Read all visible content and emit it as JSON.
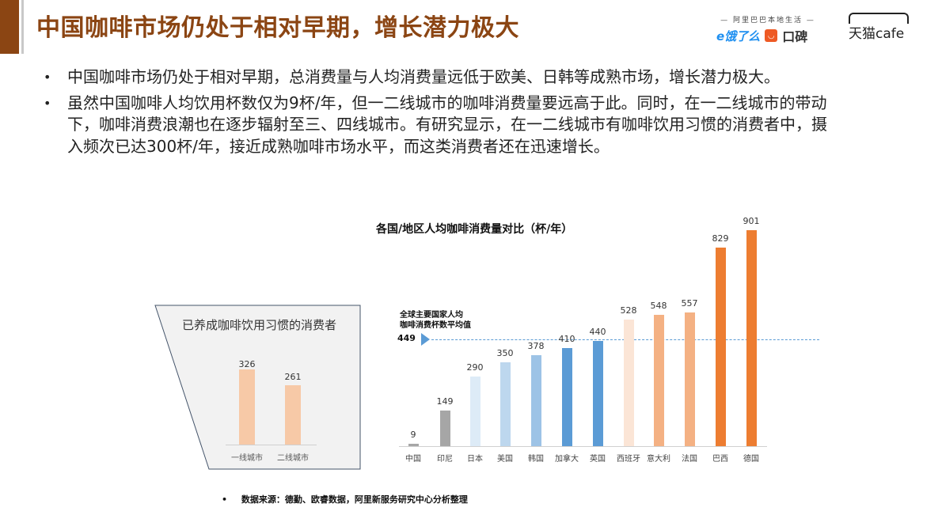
{
  "header": {
    "title": "中国咖啡市场仍处于相对早期，增长潜力极大",
    "logos": {
      "alibaba_sub": "— 阿里巴巴本地生活 —",
      "eleme": "e饿了么",
      "koubei": "口碑",
      "tmall_cafe": "天猫cafe"
    }
  },
  "bullets": [
    "中国咖啡市场仍处于相对早期，总消费量与人均消费量远低于欧美、日韩等成熟市场，增长潜力极大。",
    "虽然中国咖啡人均饮用杯数仅为9杯/年，但一二线城市的咖啡消费量要远高于此。同时，在一二线城市的带动下，咖啡消费浪潮也在逐步辐射至三、四线城市。有研究显示，在一二线城市有咖啡饮用习惯的消费者中，摄入频次已达300杯/年，接近成熟咖啡市场水平，而这类消费者还在迅速增长。"
  ],
  "bullet_symbol": "•",
  "chart_data": [
    {
      "type": "bar",
      "title": "已养成咖啡饮用习惯的消费者",
      "categories": [
        "一线城市",
        "二线城市"
      ],
      "values": [
        326,
        261
      ],
      "colors": [
        "#f7c9a7",
        "#f7c9a7"
      ],
      "xlabel": "",
      "ylabel": "",
      "grid": false
    },
    {
      "type": "bar",
      "title": "各国/地区人均咖啡消费量对比（杯/年）",
      "categories": [
        "中国",
        "印尼",
        "日本",
        "美国",
        "韩国",
        "加拿大",
        "英国",
        "西班牙",
        "意大利",
        "法国",
        "巴西",
        "德国"
      ],
      "values": [
        9,
        149,
        290,
        350,
        378,
        410,
        440,
        528,
        548,
        557,
        829,
        901
      ],
      "colors": [
        "#a6a6a6",
        "#a6a6a6",
        "#ddebf7",
        "#bdd7ee",
        "#9dc3e6",
        "#5b9bd5",
        "#5b9bd5",
        "#fbe5d6",
        "#f4b183",
        "#f4b183",
        "#ed7d31",
        "#ed7d31"
      ],
      "reference_line": {
        "label": "全球主要国家人均咖啡消费杯数平均值",
        "label_lines": [
          "全球主要国家人均",
          "咖啡消费杯数平均值"
        ],
        "value": 449,
        "color": "#5b9bd5",
        "style": "dashed"
      },
      "xlabel": "",
      "ylabel": "",
      "grid": false
    }
  ],
  "source": {
    "bullet": "•",
    "text": "数据来源：德勤、欧睿数据，阿里新服务研究中心分析整理"
  }
}
